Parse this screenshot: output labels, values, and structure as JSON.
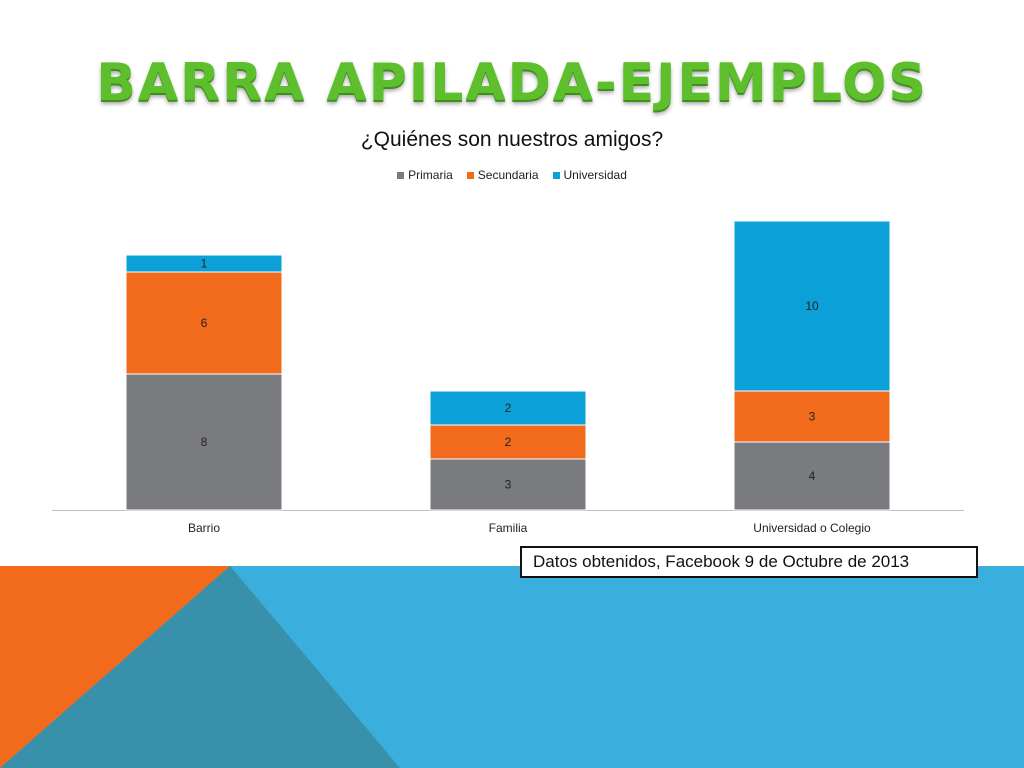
{
  "slide": {
    "title": "BARRA APILADA-EJEMPLOS",
    "source_note": "Datos obtenidos, Facebook 9 de Octubre de 2013"
  },
  "colors": {
    "primaria": "#7a7b7f",
    "secundaria": "#f26b1d",
    "universidad": "#0ba0d8",
    "title_green": "#5dbf2c",
    "band_blue": "#3aafdd",
    "band_orange": "#f26b1d"
  },
  "chart_data": {
    "type": "bar",
    "stacked": true,
    "title": "¿Quiénes son nuestros amigos?",
    "categories": [
      "Barrio",
      "Familia",
      "Universidad o Colegio"
    ],
    "series": [
      {
        "name": "Primaria",
        "values": [
          8,
          3,
          4
        ]
      },
      {
        "name": "Secundaria",
        "values": [
          6,
          2,
          3
        ]
      },
      {
        "name": "Universidad",
        "values": [
          1,
          2,
          10
        ]
      }
    ],
    "ylim": [
      0,
      17
    ],
    "grid": false,
    "legend_position": "top",
    "data_labels": true
  }
}
